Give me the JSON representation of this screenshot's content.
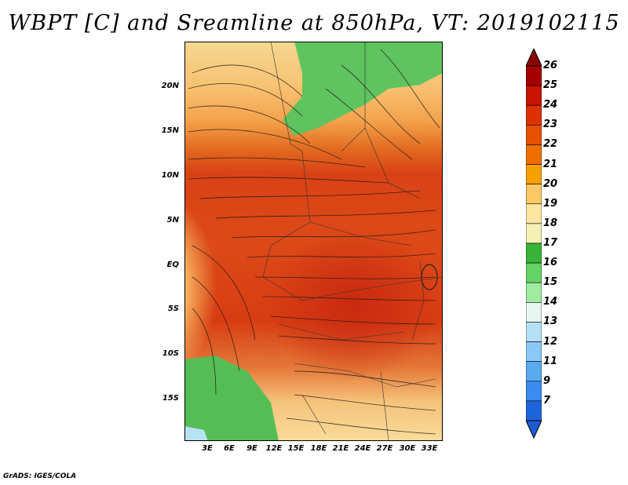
{
  "title": "WBPT [C] and Sreamline at 850hPa, VT: 2019102115",
  "credit": "GrADS: IGES/COLA",
  "lat_labels": [
    "20N",
    "15N",
    "10N",
    "5N",
    "EQ",
    "5S",
    "10S",
    "15S"
  ],
  "lon_labels": [
    "3E",
    "6E",
    "9E",
    "12E",
    "15E",
    "18E",
    "21E",
    "24E",
    "27E",
    "30E",
    "33E"
  ],
  "colorbar": {
    "labels": [
      "26",
      "25",
      "24",
      "23",
      "22",
      "21",
      "20",
      "19",
      "18",
      "17",
      "16",
      "15",
      "14",
      "13",
      "12",
      "11",
      "9",
      "7"
    ],
    "colors": [
      "#a50000",
      "#c81400",
      "#dc3200",
      "#e65000",
      "#f06e00",
      "#f8a000",
      "#fac864",
      "#fde6a0",
      "#f5f0b4",
      "#37b437",
      "#64d264",
      "#a0eba0",
      "#e6f5f0",
      "#b4e1f5",
      "#8cc8f5",
      "#5aaaf0",
      "#3c8cf0",
      "#1e64dc"
    ],
    "tip_colors": {
      "top": "#8b0000",
      "bottom": "#1e5ad2"
    }
  }
}
